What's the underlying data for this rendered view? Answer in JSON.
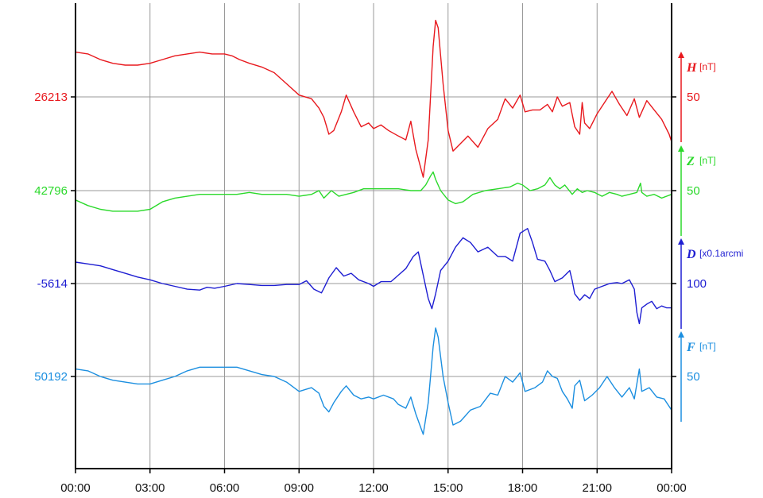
{
  "chart_data": {
    "type": "line",
    "x_ticks": [
      "00:00",
      "03:00",
      "06:00",
      "09:00",
      "12:00",
      "15:00",
      "18:00",
      "21:00",
      "00:00"
    ],
    "xlim": [
      0,
      24
    ],
    "grid": true,
    "series": [
      {
        "name": "H",
        "unit": "[nT]",
        "scale_label": "50",
        "baseline_label": "26213",
        "baseline": 26213,
        "scale_per_tick": 50,
        "color": "#e8191e",
        "points": [
          [
            0,
            26237
          ],
          [
            0.5,
            26236
          ],
          [
            1,
            26233
          ],
          [
            1.5,
            26231
          ],
          [
            2,
            26230
          ],
          [
            2.5,
            26230
          ],
          [
            3,
            26231
          ],
          [
            3.5,
            26233
          ],
          [
            4,
            26235
          ],
          [
            4.5,
            26236
          ],
          [
            5,
            26237
          ],
          [
            5.5,
            26236
          ],
          [
            6,
            26236
          ],
          [
            6.3,
            26235
          ],
          [
            6.6,
            26233
          ],
          [
            7,
            26231
          ],
          [
            7.5,
            26229
          ],
          [
            8,
            26226
          ],
          [
            8.5,
            26220
          ],
          [
            9,
            26214
          ],
          [
            9.5,
            26212
          ],
          [
            9.8,
            26207
          ],
          [
            10,
            26202
          ],
          [
            10.2,
            26193
          ],
          [
            10.4,
            26195
          ],
          [
            10.7,
            26205
          ],
          [
            10.9,
            26214
          ],
          [
            11.2,
            26205
          ],
          [
            11.5,
            26197
          ],
          [
            11.8,
            26199
          ],
          [
            12,
            26196
          ],
          [
            12.3,
            26198
          ],
          [
            12.6,
            26195
          ],
          [
            13,
            26192
          ],
          [
            13.3,
            26190
          ],
          [
            13.5,
            26200
          ],
          [
            13.7,
            26185
          ],
          [
            14,
            26170
          ],
          [
            14.2,
            26190
          ],
          [
            14.4,
            26240
          ],
          [
            14.5,
            26254
          ],
          [
            14.6,
            26250
          ],
          [
            14.8,
            26220
          ],
          [
            15,
            26195
          ],
          [
            15.2,
            26184
          ],
          [
            15.5,
            26188
          ],
          [
            15.8,
            26192
          ],
          [
            16.2,
            26186
          ],
          [
            16.6,
            26196
          ],
          [
            17,
            26201
          ],
          [
            17.3,
            26212
          ],
          [
            17.6,
            26207
          ],
          [
            17.9,
            26214
          ],
          [
            18.1,
            26205
          ],
          [
            18.4,
            26206
          ],
          [
            18.7,
            26206
          ],
          [
            19,
            26209
          ],
          [
            19.2,
            26205
          ],
          [
            19.4,
            26213
          ],
          [
            19.6,
            26208
          ],
          [
            19.9,
            26210
          ],
          [
            20.1,
            26197
          ],
          [
            20.3,
            26193
          ],
          [
            20.4,
            26210
          ],
          [
            20.5,
            26199
          ],
          [
            20.7,
            26196
          ],
          [
            21,
            26204
          ],
          [
            21.3,
            26210
          ],
          [
            21.6,
            26216
          ],
          [
            21.9,
            26209
          ],
          [
            22.2,
            26203
          ],
          [
            22.5,
            26212
          ],
          [
            22.7,
            26202
          ],
          [
            23,
            26211
          ],
          [
            23.3,
            26206
          ],
          [
            23.6,
            26201
          ],
          [
            23.9,
            26193
          ],
          [
            24,
            26189
          ]
        ]
      },
      {
        "name": "Z",
        "unit": "[nT]",
        "scale_label": "50",
        "baseline_label": "42796",
        "baseline": 42796,
        "scale_per_tick": 50,
        "color": "#2bd92b",
        "points": [
          [
            0,
            42791
          ],
          [
            0.5,
            42788
          ],
          [
            1,
            42786
          ],
          [
            1.5,
            42785
          ],
          [
            2,
            42785
          ],
          [
            2.5,
            42785
          ],
          [
            3,
            42786
          ],
          [
            3.5,
            42790
          ],
          [
            4,
            42792
          ],
          [
            4.5,
            42793
          ],
          [
            5,
            42794
          ],
          [
            5.5,
            42794
          ],
          [
            6,
            42794
          ],
          [
            6.5,
            42794
          ],
          [
            7,
            42795
          ],
          [
            7.5,
            42794
          ],
          [
            8,
            42794
          ],
          [
            8.5,
            42794
          ],
          [
            9,
            42793
          ],
          [
            9.5,
            42794
          ],
          [
            9.8,
            42796
          ],
          [
            10,
            42792
          ],
          [
            10.3,
            42796
          ],
          [
            10.6,
            42793
          ],
          [
            10.9,
            42794
          ],
          [
            11.2,
            42795
          ],
          [
            11.6,
            42797
          ],
          [
            12,
            42797
          ],
          [
            12.5,
            42797
          ],
          [
            13,
            42797
          ],
          [
            13.5,
            42796
          ],
          [
            13.9,
            42796
          ],
          [
            14.1,
            42799
          ],
          [
            14.3,
            42804
          ],
          [
            14.4,
            42806
          ],
          [
            14.5,
            42802
          ],
          [
            14.7,
            42796
          ],
          [
            15,
            42791
          ],
          [
            15.3,
            42789
          ],
          [
            15.6,
            42790
          ],
          [
            16,
            42794
          ],
          [
            16.5,
            42796
          ],
          [
            17,
            42797
          ],
          [
            17.5,
            42798
          ],
          [
            17.8,
            42800
          ],
          [
            18,
            42799
          ],
          [
            18.3,
            42796
          ],
          [
            18.6,
            42797
          ],
          [
            18.9,
            42799
          ],
          [
            19.1,
            42803
          ],
          [
            19.3,
            42799
          ],
          [
            19.5,
            42797
          ],
          [
            19.7,
            42799
          ],
          [
            20,
            42794
          ],
          [
            20.2,
            42797
          ],
          [
            20.4,
            42795
          ],
          [
            20.6,
            42796
          ],
          [
            20.9,
            42795
          ],
          [
            21.2,
            42793
          ],
          [
            21.5,
            42795
          ],
          [
            21.8,
            42794
          ],
          [
            22,
            42793
          ],
          [
            22.3,
            42794
          ],
          [
            22.6,
            42795
          ],
          [
            22.75,
            42800
          ],
          [
            22.8,
            42795
          ],
          [
            23,
            42793
          ],
          [
            23.3,
            42794
          ],
          [
            23.6,
            42792
          ],
          [
            24,
            42794
          ]
        ]
      },
      {
        "name": "D",
        "unit": "[x0.1arcmi",
        "scale_label": "100",
        "baseline_label": "-5614",
        "baseline": -5614,
        "scale_per_tick": 100,
        "color": "#1e1ed2",
        "points": [
          [
            0,
            -5591
          ],
          [
            0.5,
            -5593
          ],
          [
            1,
            -5595
          ],
          [
            1.5,
            -5599
          ],
          [
            2,
            -5603
          ],
          [
            2.5,
            -5607
          ],
          [
            3,
            -5610
          ],
          [
            3.5,
            -5614
          ],
          [
            4,
            -5617
          ],
          [
            4.5,
            -5620
          ],
          [
            5,
            -5621
          ],
          [
            5.3,
            -5618
          ],
          [
            5.6,
            -5619
          ],
          [
            6,
            -5617
          ],
          [
            6.5,
            -5614
          ],
          [
            7,
            -5615
          ],
          [
            7.5,
            -5616
          ],
          [
            8,
            -5616
          ],
          [
            8.5,
            -5615
          ],
          [
            9,
            -5615
          ],
          [
            9.3,
            -5611
          ],
          [
            9.6,
            -5620
          ],
          [
            9.9,
            -5624
          ],
          [
            10,
            -5619
          ],
          [
            10.2,
            -5608
          ],
          [
            10.5,
            -5597
          ],
          [
            10.8,
            -5606
          ],
          [
            11.1,
            -5603
          ],
          [
            11.4,
            -5610
          ],
          [
            11.8,
            -5614
          ],
          [
            12,
            -5617
          ],
          [
            12.3,
            -5612
          ],
          [
            12.7,
            -5612
          ],
          [
            13,
            -5605
          ],
          [
            13.3,
            -5598
          ],
          [
            13.6,
            -5585
          ],
          [
            13.8,
            -5580
          ],
          [
            14,
            -5605
          ],
          [
            14.2,
            -5630
          ],
          [
            14.35,
            -5641
          ],
          [
            14.5,
            -5625
          ],
          [
            14.7,
            -5600
          ],
          [
            15,
            -5590
          ],
          [
            15.3,
            -5575
          ],
          [
            15.6,
            -5565
          ],
          [
            15.9,
            -5570
          ],
          [
            16.2,
            -5580
          ],
          [
            16.6,
            -5575
          ],
          [
            17,
            -5585
          ],
          [
            17.3,
            -5585
          ],
          [
            17.6,
            -5590
          ],
          [
            17.9,
            -5560
          ],
          [
            18.2,
            -5555
          ],
          [
            18.4,
            -5570
          ],
          [
            18.6,
            -5588
          ],
          [
            18.9,
            -5590
          ],
          [
            19.1,
            -5600
          ],
          [
            19.3,
            -5612
          ],
          [
            19.6,
            -5608
          ],
          [
            19.9,
            -5600
          ],
          [
            20,
            -5611
          ],
          [
            20.1,
            -5625
          ],
          [
            20.3,
            -5632
          ],
          [
            20.5,
            -5626
          ],
          [
            20.7,
            -5630
          ],
          [
            20.9,
            -5620
          ],
          [
            21.2,
            -5617
          ],
          [
            21.5,
            -5614
          ],
          [
            21.8,
            -5613
          ],
          [
            22,
            -5614
          ],
          [
            22.3,
            -5610
          ],
          [
            22.5,
            -5620
          ],
          [
            22.6,
            -5645
          ],
          [
            22.7,
            -5657
          ],
          [
            22.8,
            -5640
          ],
          [
            23,
            -5636
          ],
          [
            23.2,
            -5633
          ],
          [
            23.4,
            -5641
          ],
          [
            23.6,
            -5638
          ],
          [
            23.8,
            -5640
          ],
          [
            24,
            -5640
          ]
        ]
      },
      {
        "name": "F",
        "unit": "[nT]",
        "scale_label": "50",
        "baseline_label": "50192",
        "baseline": 50192,
        "scale_per_tick": 50,
        "color": "#1c8fe0",
        "points": [
          [
            0,
            50196
          ],
          [
            0.5,
            50195
          ],
          [
            1,
            50192
          ],
          [
            1.5,
            50190
          ],
          [
            2,
            50189
          ],
          [
            2.5,
            50188
          ],
          [
            3,
            50188
          ],
          [
            3.5,
            50190
          ],
          [
            4,
            50192
          ],
          [
            4.5,
            50195
          ],
          [
            5,
            50197
          ],
          [
            5.5,
            50197
          ],
          [
            6,
            50197
          ],
          [
            6.5,
            50197
          ],
          [
            7,
            50195
          ],
          [
            7.5,
            50193
          ],
          [
            8,
            50192
          ],
          [
            8.5,
            50189
          ],
          [
            9,
            50184
          ],
          [
            9.5,
            50186
          ],
          [
            9.8,
            50183
          ],
          [
            10,
            50176
          ],
          [
            10.2,
            50173
          ],
          [
            10.4,
            50178
          ],
          [
            10.7,
            50184
          ],
          [
            10.9,
            50187
          ],
          [
            11.2,
            50182
          ],
          [
            11.5,
            50180
          ],
          [
            11.8,
            50181
          ],
          [
            12,
            50180
          ],
          [
            12.4,
            50182
          ],
          [
            12.8,
            50180
          ],
          [
            13,
            50177
          ],
          [
            13.3,
            50175
          ],
          [
            13.5,
            50181
          ],
          [
            13.7,
            50172
          ],
          [
            14,
            50161
          ],
          [
            14.2,
            50178
          ],
          [
            14.4,
            50208
          ],
          [
            14.5,
            50218
          ],
          [
            14.6,
            50213
          ],
          [
            14.8,
            50192
          ],
          [
            15,
            50178
          ],
          [
            15.2,
            50166
          ],
          [
            15.5,
            50168
          ],
          [
            15.9,
            50174
          ],
          [
            16.3,
            50176
          ],
          [
            16.7,
            50183
          ],
          [
            17,
            50182
          ],
          [
            17.3,
            50192
          ],
          [
            17.6,
            50189
          ],
          [
            17.9,
            50194
          ],
          [
            18.1,
            50184
          ],
          [
            18.5,
            50186
          ],
          [
            18.8,
            50189
          ],
          [
            19,
            50195
          ],
          [
            19.2,
            50192
          ],
          [
            19.4,
            50191
          ],
          [
            19.6,
            50184
          ],
          [
            19.8,
            50180
          ],
          [
            20,
            50175
          ],
          [
            20.1,
            50187
          ],
          [
            20.3,
            50190
          ],
          [
            20.5,
            50179
          ],
          [
            20.8,
            50182
          ],
          [
            21.1,
            50186
          ],
          [
            21.4,
            50192
          ],
          [
            21.7,
            50186
          ],
          [
            22,
            50181
          ],
          [
            22.3,
            50186
          ],
          [
            22.5,
            50180
          ],
          [
            22.7,
            50196
          ],
          [
            22.8,
            50184
          ],
          [
            23.1,
            50186
          ],
          [
            23.4,
            50181
          ],
          [
            23.7,
            50180
          ],
          [
            24,
            50174
          ]
        ]
      }
    ]
  }
}
